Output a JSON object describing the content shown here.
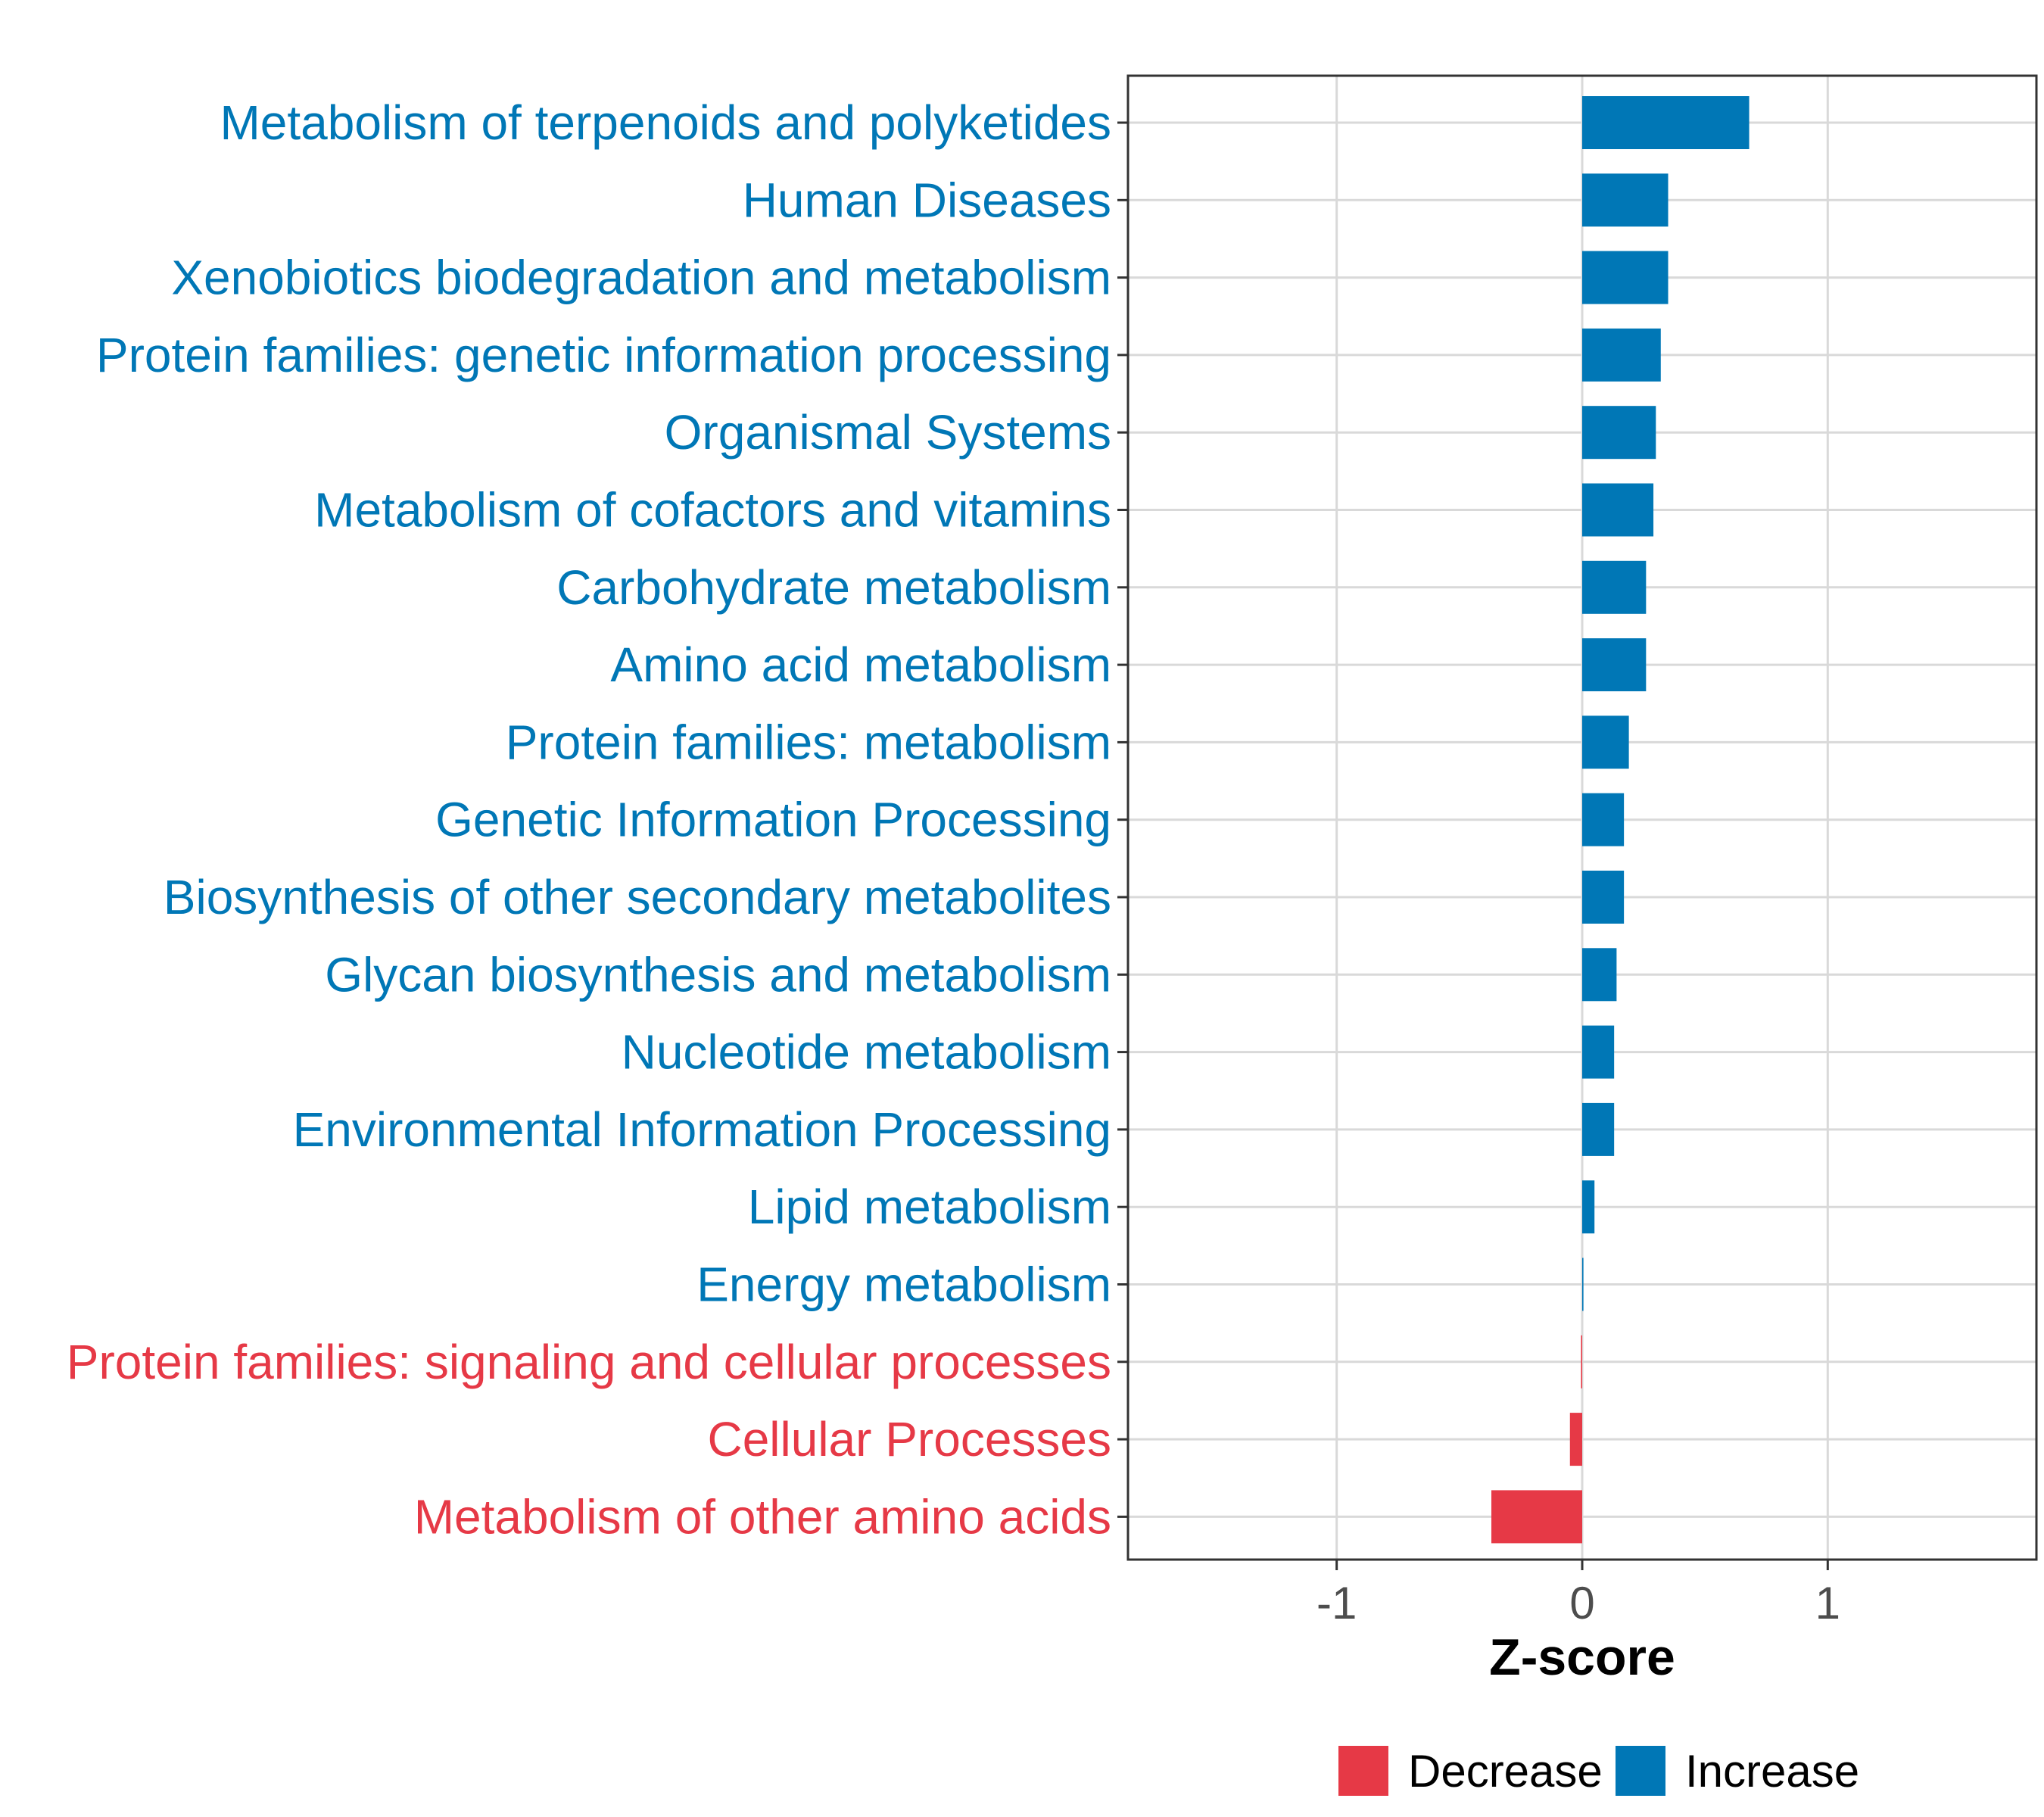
{
  "chart_data": {
    "type": "bar",
    "orientation": "horizontal",
    "title": "",
    "xlabel": "Z-score",
    "ylabel": "",
    "xlim": [
      -1.85,
      1.85
    ],
    "xticks": [
      {
        "value": -1,
        "label": "-1"
      },
      {
        "value": 0,
        "label": "0"
      },
      {
        "value": 1,
        "label": "1"
      }
    ],
    "grid": true,
    "categories": [
      "Metabolism of terpenoids and polyketides",
      "Human Diseases",
      "Xenobiotics biodegradation and metabolism",
      "Protein families: genetic information processing",
      "Organismal Systems",
      "Metabolism of cofactors and vitamins",
      "Carbohydrate metabolism",
      "Amino acid metabolism",
      "Protein families: metabolism",
      "Genetic Information Processing",
      "Biosynthesis of other secondary metabolites",
      "Glycan biosynthesis and metabolism",
      "Nucleotide metabolism",
      "Environmental Information Processing",
      "Lipid metabolism",
      "Energy metabolism",
      "Protein families: signaling and cellular processes",
      "Cellular Processes",
      "Metabolism of other amino acids"
    ],
    "values": [
      0.68,
      0.35,
      0.35,
      0.32,
      0.3,
      0.29,
      0.26,
      0.26,
      0.19,
      0.17,
      0.17,
      0.14,
      0.13,
      0.13,
      0.05,
      0.005,
      -0.005,
      -0.05,
      -0.37
    ],
    "groups": [
      "Increase",
      "Increase",
      "Increase",
      "Increase",
      "Increase",
      "Increase",
      "Increase",
      "Increase",
      "Increase",
      "Increase",
      "Increase",
      "Increase",
      "Increase",
      "Increase",
      "Increase",
      "Increase",
      "Decrease",
      "Decrease",
      "Decrease"
    ],
    "legend": {
      "position": "bottom",
      "entries": [
        {
          "label": "Decrease",
          "color": "#e63946"
        },
        {
          "label": "Increase",
          "color": "#0077b6"
        }
      ]
    },
    "colors": {
      "Decrease": "#e63946",
      "Increase": "#0077b6",
      "grid": "#d9d9d9",
      "panel_border": "#333333"
    }
  }
}
